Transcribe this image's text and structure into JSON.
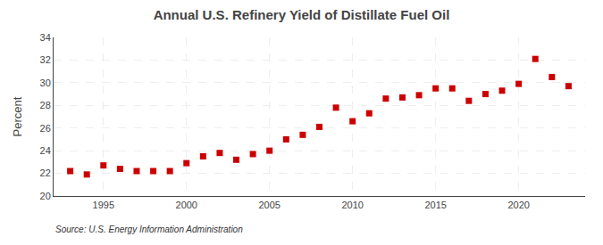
{
  "chart_data": {
    "type": "scatter",
    "title": "Annual U.S. Refinery Yield of Distillate Fuel Oil",
    "ylabel": "Percent",
    "annotations": [
      "Source: U.S. Energy Information Administration"
    ],
    "x": [
      1993,
      1994,
      1995,
      1996,
      1997,
      1998,
      1999,
      2000,
      2001,
      2002,
      2003,
      2004,
      2005,
      2006,
      2007,
      2008,
      2009,
      2010,
      2011,
      2012,
      2013,
      2014,
      2015,
      2016,
      2017,
      2018,
      2019,
      2020,
      2021,
      2022,
      2023
    ],
    "values": [
      22.2,
      21.9,
      22.7,
      22.4,
      22.2,
      22.2,
      22.2,
      22.9,
      23.5,
      23.8,
      23.2,
      23.7,
      24.0,
      25.0,
      25.4,
      26.1,
      27.8,
      26.6,
      27.3,
      28.6,
      28.7,
      28.9,
      29.5,
      29.5,
      28.4,
      29.0,
      29.3,
      29.9,
      32.1,
      30.5,
      29.7
    ],
    "color": "#cc0000",
    "marker": "square",
    "xlim": [
      1992,
      2024
    ],
    "ylim": [
      20,
      34
    ],
    "xticks": [
      1995,
      2000,
      2005,
      2010,
      2015,
      2020
    ],
    "yticks": [
      20,
      22,
      24,
      26,
      28,
      30,
      32,
      34
    ],
    "grid": true
  }
}
